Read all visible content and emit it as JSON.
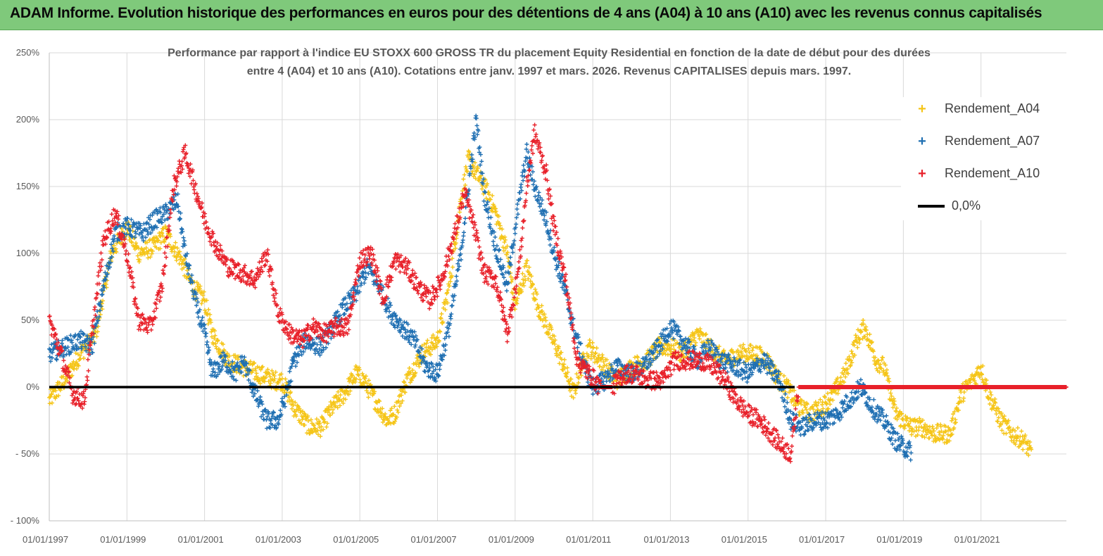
{
  "header": {
    "title": "ADAM Informe. Evolution historique des performances en euros pour des détentions de 4 ans (A04) à 10 ans (A10) avec les revenus connus capitalisés"
  },
  "chart_data": {
    "type": "scatter",
    "title_line1": "Performance par rapport à l'indice EU STOXX 600 GROSS TR  du placement Equity Residential en fonction de la date de début pour des durées",
    "title_line2": "entre 4 (A04) et 10 ans (A10). Cotations entre janv. 1997 et mars. 2026. Revenus CAPITALISES depuis mars. 1997.",
    "ylim": [
      -100,
      250
    ],
    "y_ticks": [
      250,
      200,
      150,
      100,
      50,
      0,
      -50,
      -100
    ],
    "y_tick_labels": [
      "250%",
      "200%",
      "150%",
      "100%",
      "50%",
      "0%",
      "- 50%",
      "- 100%"
    ],
    "x_range_years": [
      1997.0,
      2023.2
    ],
    "x_ticks": [
      1997,
      1999,
      2001,
      2003,
      2005,
      2007,
      2009,
      2011,
      2013,
      2015,
      2017,
      2019,
      2021
    ],
    "x_tick_labels": [
      "01/01/1997",
      "01/01/1999",
      "01/01/2001",
      "01/01/2003",
      "01/01/2005",
      "01/01/2007",
      "01/01/2009",
      "01/01/2011",
      "01/01/2013",
      "01/01/2015",
      "01/01/2017",
      "01/01/2019",
      "01/01/2021"
    ],
    "grid": true,
    "legend_position": "top-right",
    "series": [
      {
        "name": "Rendement_A04",
        "color": "#f5c518",
        "points": [
          [
            1997.0,
            -10
          ],
          [
            1997.4,
            5
          ],
          [
            1997.8,
            25
          ],
          [
            1998.2,
            40
          ],
          [
            1998.6,
            100
          ],
          [
            1999.0,
            120
          ],
          [
            1999.3,
            100
          ],
          [
            1999.7,
            105
          ],
          [
            2000.0,
            115
          ],
          [
            2000.4,
            95
          ],
          [
            2000.7,
            75
          ],
          [
            2001.0,
            65
          ],
          [
            2001.2,
            40
          ],
          [
            2001.6,
            20
          ],
          [
            2002.0,
            15
          ],
          [
            2002.4,
            10
          ],
          [
            2002.8,
            5
          ],
          [
            2003.0,
            5
          ],
          [
            2003.3,
            -15
          ],
          [
            2003.7,
            -30
          ],
          [
            2004.0,
            -30
          ],
          [
            2004.3,
            -15
          ],
          [
            2004.6,
            -5
          ],
          [
            2004.9,
            10
          ],
          [
            2005.1,
            5
          ],
          [
            2005.4,
            -10
          ],
          [
            2005.7,
            -25
          ],
          [
            2005.9,
            -20
          ],
          [
            2006.2,
            5
          ],
          [
            2006.6,
            25
          ],
          [
            2007.0,
            35
          ],
          [
            2007.3,
            75
          ],
          [
            2007.6,
            140
          ],
          [
            2007.8,
            170
          ],
          [
            2008.0,
            160
          ],
          [
            2008.3,
            145
          ],
          [
            2008.5,
            130
          ],
          [
            2008.8,
            100
          ],
          [
            2009.0,
            60
          ],
          [
            2009.3,
            90
          ],
          [
            2009.6,
            60
          ],
          [
            2009.9,
            40
          ],
          [
            2010.2,
            20
          ],
          [
            2010.5,
            -5
          ],
          [
            2010.7,
            15
          ],
          [
            2010.9,
            30
          ],
          [
            2011.2,
            20
          ],
          [
            2011.6,
            5
          ],
          [
            2012.0,
            15
          ],
          [
            2012.4,
            20
          ],
          [
            2012.7,
            30
          ],
          [
            2013.0,
            30
          ],
          [
            2013.3,
            25
          ],
          [
            2013.7,
            40
          ],
          [
            2014.0,
            30
          ],
          [
            2014.4,
            20
          ],
          [
            2014.8,
            25
          ],
          [
            2015.2,
            25
          ],
          [
            2015.5,
            20
          ],
          [
            2015.8,
            5
          ],
          [
            2016.0,
            0
          ],
          [
            2016.3,
            -15
          ],
          [
            2016.6,
            -20
          ],
          [
            2016.9,
            -15
          ],
          [
            2017.2,
            -5
          ],
          [
            2017.5,
            10
          ],
          [
            2017.8,
            35
          ],
          [
            2018.0,
            45
          ],
          [
            2018.3,
            20
          ],
          [
            2018.5,
            15
          ],
          [
            2018.8,
            -20
          ],
          [
            2019.2,
            -30
          ],
          [
            2019.5,
            -30
          ],
          [
            2019.8,
            -35
          ],
          [
            2020.2,
            -35
          ],
          [
            2020.5,
            -5
          ],
          [
            2020.8,
            5
          ],
          [
            2021.0,
            15
          ],
          [
            2021.2,
            -5
          ],
          [
            2021.5,
            -25
          ],
          [
            2021.8,
            -35
          ],
          [
            2022.1,
            -40
          ],
          [
            2022.3,
            -50
          ]
        ]
      },
      {
        "name": "Rendement_A07",
        "color": "#1f6fb2",
        "points": [
          [
            1997.0,
            25
          ],
          [
            1997.4,
            30
          ],
          [
            1997.8,
            35
          ],
          [
            1998.1,
            30
          ],
          [
            1998.4,
            75
          ],
          [
            1998.7,
            115
          ],
          [
            1999.0,
            120
          ],
          [
            1999.4,
            115
          ],
          [
            1999.7,
            125
          ],
          [
            2000.0,
            130
          ],
          [
            2000.3,
            140
          ],
          [
            2000.5,
            100
          ],
          [
            2000.8,
            60
          ],
          [
            2001.0,
            40
          ],
          [
            2001.2,
            10
          ],
          [
            2001.5,
            20
          ],
          [
            2001.8,
            10
          ],
          [
            2002.0,
            20
          ],
          [
            2002.3,
            -5
          ],
          [
            2002.6,
            -25
          ],
          [
            2002.9,
            -25
          ],
          [
            2003.1,
            -5
          ],
          [
            2003.3,
            20
          ],
          [
            2003.6,
            35
          ],
          [
            2004.0,
            30
          ],
          [
            2004.3,
            45
          ],
          [
            2004.6,
            60
          ],
          [
            2004.9,
            70
          ],
          [
            2005.2,
            90
          ],
          [
            2005.5,
            75
          ],
          [
            2005.8,
            55
          ],
          [
            2006.1,
            45
          ],
          [
            2006.4,
            35
          ],
          [
            2006.7,
            15
          ],
          [
            2007.0,
            10
          ],
          [
            2007.3,
            45
          ],
          [
            2007.6,
            100
          ],
          [
            2007.8,
            150
          ],
          [
            2008.0,
            200
          ],
          [
            2008.2,
            145
          ],
          [
            2008.5,
            105
          ],
          [
            2008.8,
            75
          ],
          [
            2009.0,
            120
          ],
          [
            2009.3,
            175
          ],
          [
            2009.5,
            150
          ],
          [
            2009.8,
            125
          ],
          [
            2010.0,
            100
          ],
          [
            2010.3,
            70
          ],
          [
            2010.5,
            45
          ],
          [
            2010.8,
            15
          ],
          [
            2011.0,
            0
          ],
          [
            2011.3,
            5
          ],
          [
            2011.6,
            15
          ],
          [
            2012.0,
            10
          ],
          [
            2012.3,
            15
          ],
          [
            2012.7,
            30
          ],
          [
            2013.0,
            45
          ],
          [
            2013.3,
            35
          ],
          [
            2013.7,
            20
          ],
          [
            2014.0,
            30
          ],
          [
            2014.3,
            20
          ],
          [
            2014.7,
            15
          ],
          [
            2015.0,
            10
          ],
          [
            2015.4,
            20
          ],
          [
            2015.8,
            5
          ],
          [
            2016.1,
            -25
          ],
          [
            2016.4,
            -30
          ],
          [
            2016.7,
            -25
          ],
          [
            2017.0,
            -25
          ],
          [
            2017.3,
            -20
          ],
          [
            2017.6,
            -10
          ],
          [
            2017.9,
            0
          ],
          [
            2018.2,
            -15
          ],
          [
            2018.5,
            -25
          ],
          [
            2018.8,
            -40
          ],
          [
            2019.0,
            -45
          ],
          [
            2019.2,
            -48
          ]
        ]
      },
      {
        "name": "Rendement_A10",
        "color": "#e8212a",
        "points": [
          [
            1997.0,
            50
          ],
          [
            1997.3,
            25
          ],
          [
            1997.6,
            -5
          ],
          [
            1997.9,
            -10
          ],
          [
            1998.1,
            40
          ],
          [
            1998.4,
            110
          ],
          [
            1998.7,
            130
          ],
          [
            1999.0,
            100
          ],
          [
            1999.3,
            50
          ],
          [
            1999.6,
            45
          ],
          [
            1999.9,
            75
          ],
          [
            2000.2,
            150
          ],
          [
            2000.5,
            175
          ],
          [
            2000.8,
            145
          ],
          [
            2001.0,
            125
          ],
          [
            2001.3,
            105
          ],
          [
            2001.6,
            90
          ],
          [
            2002.0,
            85
          ],
          [
            2002.3,
            80
          ],
          [
            2002.6,
            100
          ],
          [
            2002.9,
            55
          ],
          [
            2003.2,
            40
          ],
          [
            2003.5,
            35
          ],
          [
            2003.8,
            45
          ],
          [
            2004.1,
            40
          ],
          [
            2004.4,
            45
          ],
          [
            2004.7,
            45
          ],
          [
            2005.0,
            95
          ],
          [
            2005.3,
            100
          ],
          [
            2005.6,
            65
          ],
          [
            2005.9,
            95
          ],
          [
            2006.2,
            90
          ],
          [
            2006.5,
            75
          ],
          [
            2006.8,
            65
          ],
          [
            2007.1,
            80
          ],
          [
            2007.4,
            110
          ],
          [
            2007.7,
            145
          ],
          [
            2007.9,
            125
          ],
          [
            2008.2,
            85
          ],
          [
            2008.5,
            80
          ],
          [
            2008.8,
            40
          ],
          [
            2009.1,
            90
          ],
          [
            2009.3,
            150
          ],
          [
            2009.5,
            190
          ],
          [
            2009.8,
            160
          ],
          [
            2010.0,
            120
          ],
          [
            2010.3,
            80
          ],
          [
            2010.6,
            20
          ],
          [
            2010.9,
            10
          ],
          [
            2011.2,
            0
          ],
          [
            2011.5,
            0
          ],
          [
            2011.8,
            10
          ],
          [
            2012.1,
            10
          ],
          [
            2012.4,
            5
          ],
          [
            2012.8,
            5
          ],
          [
            2013.1,
            20
          ],
          [
            2013.4,
            20
          ],
          [
            2013.8,
            20
          ],
          [
            2014.1,
            15
          ],
          [
            2014.4,
            5
          ],
          [
            2014.7,
            -10
          ],
          [
            2015.0,
            -20
          ],
          [
            2015.3,
            -25
          ],
          [
            2015.6,
            -35
          ],
          [
            2015.9,
            -45
          ],
          [
            2016.1,
            -50
          ],
          [
            2016.3,
            0
          ],
          [
            2017.0,
            0
          ],
          [
            2018.0,
            0
          ],
          [
            2019.0,
            0
          ],
          [
            2020.0,
            0
          ],
          [
            2021.0,
            0
          ],
          [
            2022.0,
            0
          ],
          [
            2023.2,
            0
          ]
        ]
      }
    ],
    "reference_line": {
      "name": "0,0%",
      "value": 0,
      "color": "#000000"
    }
  }
}
